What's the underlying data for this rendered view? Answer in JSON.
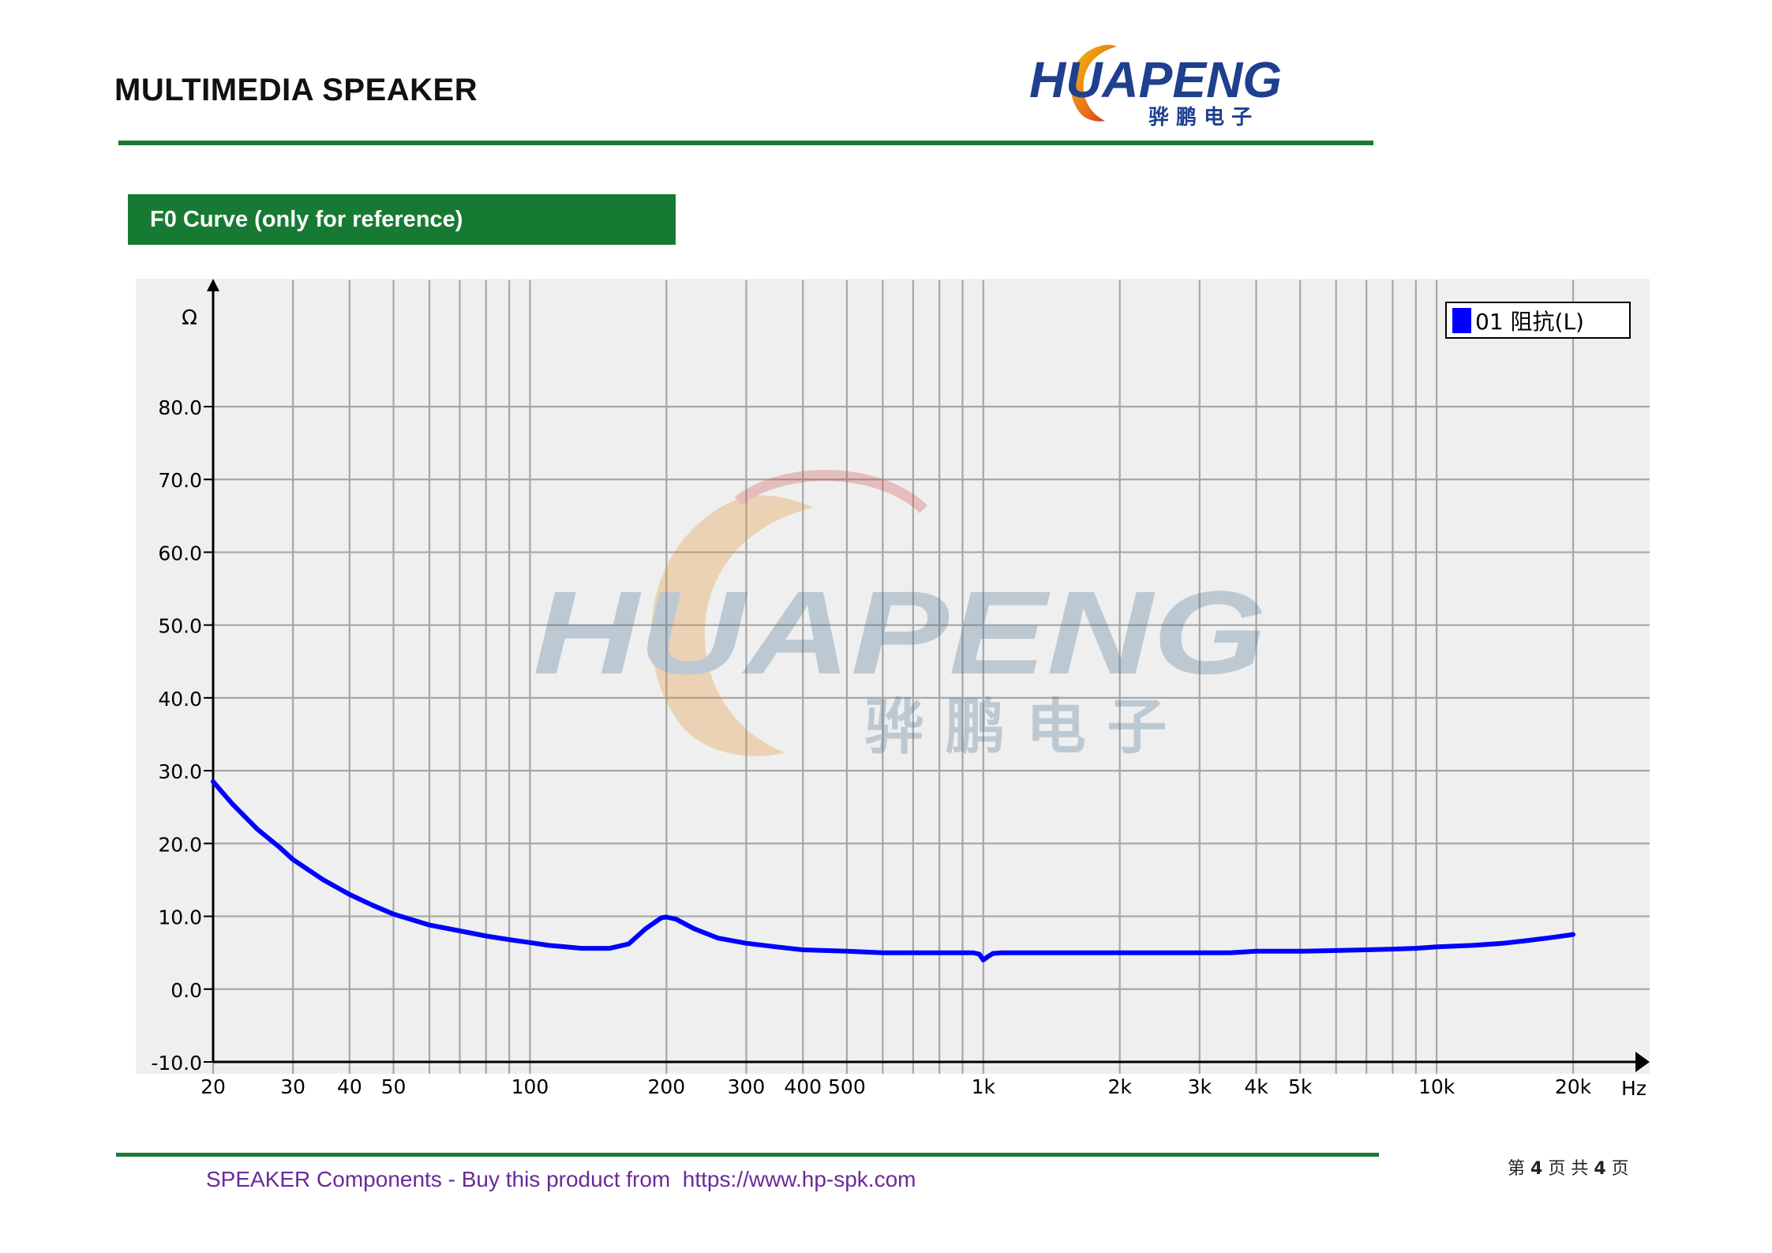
{
  "header": {
    "title": "MULTIMEDIA SPEAKER",
    "logo_text": "HUAPENG",
    "logo_cn": "骅 鹏 电 子"
  },
  "section": {
    "title": "F0 Curve (only for reference)"
  },
  "chart_data": {
    "type": "line",
    "x_scale": "log",
    "xlabel": "Hz",
    "ylabel": "Ω",
    "xlim": [
      20,
      25000
    ],
    "ylim": [
      -10,
      90
    ],
    "grid": true,
    "legend_position": "top-right",
    "x_ticks": [
      {
        "value": 20,
        "label": "20"
      },
      {
        "value": 30,
        "label": "30"
      },
      {
        "value": 40,
        "label": "40"
      },
      {
        "value": 50,
        "label": "50"
      },
      {
        "value": 100,
        "label": "100"
      },
      {
        "value": 200,
        "label": "200"
      },
      {
        "value": 300,
        "label": "300"
      },
      {
        "value": 400,
        "label": "400"
      },
      {
        "value": 500,
        "label": "500"
      },
      {
        "value": 1000,
        "label": "1k"
      },
      {
        "value": 2000,
        "label": "2k"
      },
      {
        "value": 3000,
        "label": "3k"
      },
      {
        "value": 4000,
        "label": "4k"
      },
      {
        "value": 5000,
        "label": "5k"
      },
      {
        "value": 10000,
        "label": "10k"
      },
      {
        "value": 20000,
        "label": "20k"
      }
    ],
    "x_grid": [
      20,
      30,
      40,
      50,
      60,
      70,
      80,
      90,
      100,
      200,
      300,
      400,
      500,
      600,
      700,
      800,
      900,
      1000,
      2000,
      3000,
      4000,
      5000,
      6000,
      7000,
      8000,
      9000,
      10000,
      20000
    ],
    "y_ticks": [
      {
        "value": -10,
        "label": "-10.0"
      },
      {
        "value": 0,
        "label": "0.0"
      },
      {
        "value": 10,
        "label": "10.0"
      },
      {
        "value": 20,
        "label": "20.0"
      },
      {
        "value": 30,
        "label": "30.0"
      },
      {
        "value": 40,
        "label": "40.0"
      },
      {
        "value": 50,
        "label": "50.0"
      },
      {
        "value": 60,
        "label": "60.0"
      },
      {
        "value": 70,
        "label": "70.0"
      },
      {
        "value": 80,
        "label": "80.0"
      }
    ],
    "series": [
      {
        "name": "01 阻抗(L)",
        "color": "#0000ff",
        "x": [
          20,
          22,
          25,
          28,
          30,
          35,
          40,
          45,
          50,
          60,
          70,
          80,
          90,
          100,
          110,
          120,
          130,
          150,
          165,
          180,
          195,
          200,
          210,
          230,
          260,
          300,
          350,
          400,
          500,
          600,
          700,
          800,
          900,
          950,
          980,
          1000,
          1020,
          1050,
          1100,
          1300,
          1600,
          2000,
          2500,
          3000,
          3500,
          4000,
          5000,
          6000,
          7000,
          8000,
          9000,
          10000,
          12000,
          14000,
          16000,
          18000,
          20000
        ],
        "y": [
          28.5,
          25.5,
          22,
          19.5,
          17.8,
          15,
          13,
          11.5,
          10.3,
          8.8,
          8,
          7.3,
          6.8,
          6.4,
          6,
          5.8,
          5.6,
          5.6,
          6.2,
          8.3,
          9.8,
          9.9,
          9.6,
          8.3,
          7,
          6.3,
          5.8,
          5.4,
          5.2,
          5,
          5,
          5,
          5,
          5,
          4.8,
          4,
          4.4,
          4.9,
          5,
          5,
          5,
          5,
          5,
          5,
          5,
          5.2,
          5.2,
          5.3,
          5.4,
          5.5,
          5.6,
          5.8,
          6,
          6.3,
          6.7,
          7.1,
          7.5
        ]
      }
    ]
  },
  "footer": {
    "text": "SPEAKER Components - Buy this product from  https://www.hp-spk.com",
    "page_prefix": "第",
    "page_current": "4",
    "page_mid": "页 共",
    "page_total": "4",
    "page_suffix": "页"
  },
  "colors": {
    "brand_green": "#177a33",
    "logo_blue": "#1f3f8f",
    "curve_blue": "#0000ff",
    "grid": "#a6a6a6",
    "plot_bg": "#efefef",
    "footer_purple": "#6a2a9a"
  }
}
